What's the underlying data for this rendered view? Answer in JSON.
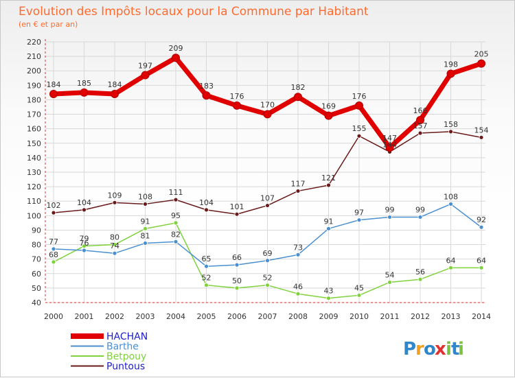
{
  "chart_data": {
    "type": "line",
    "title": "Evolution des Impôts locaux pour la Commune par Habitant",
    "subtitle": "(en € et par an)",
    "categories": [
      "2000",
      "2001",
      "2002",
      "2003",
      "2004",
      "2005",
      "2006",
      "2007",
      "2008",
      "2009",
      "2010",
      "2011",
      "2012",
      "2013",
      "2014"
    ],
    "ylim": [
      40,
      220
    ],
    "yticks": [
      40,
      50,
      60,
      70,
      80,
      90,
      100,
      110,
      120,
      130,
      140,
      150,
      160,
      170,
      180,
      190,
      200,
      210,
      220
    ],
    "grid": true,
    "legend_position": "bottom-left",
    "series": [
      {
        "name": "HACHAN",
        "color": "#e00000",
        "values": [
          184,
          185,
          184,
          197,
          209,
          183,
          176,
          170,
          182,
          169,
          176,
          147,
          166,
          198,
          205
        ]
      },
      {
        "name": "Barthe",
        "color": "#4a8fd0",
        "values": [
          77,
          76,
          74,
          81,
          82,
          65,
          66,
          69,
          73,
          91,
          97,
          99,
          99,
          108,
          92
        ]
      },
      {
        "name": "Betpouy",
        "color": "#7fd23c",
        "values": [
          68,
          79,
          80,
          91,
          95,
          52,
          50,
          52,
          46,
          43,
          45,
          54,
          56,
          64,
          64
        ]
      },
      {
        "name": "Puntous",
        "color": "#6a1a1a",
        "values": [
          102,
          104,
          109,
          108,
          111,
          104,
          101,
          107,
          117,
          121,
          155,
          144,
          157,
          158,
          154
        ]
      }
    ]
  },
  "brand": {
    "text": "Proxiti",
    "letters": [
      "P",
      "r",
      "o",
      "x",
      "i",
      "t",
      "i"
    ],
    "colors": [
      "#2f86c9",
      "#f0a020",
      "#2f86c9",
      "#e03030",
      "#7ac143",
      "#2f86c9",
      "#7ac143"
    ]
  }
}
